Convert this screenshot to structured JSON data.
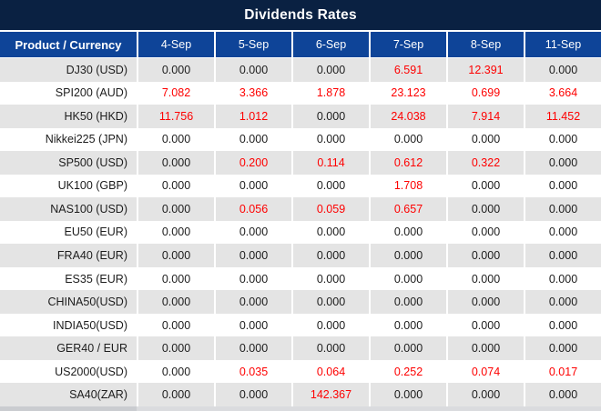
{
  "title": "Dividends Rates",
  "colors": {
    "title-bar-bg": "#0a2142",
    "header-bg": "#0e4498",
    "alt-row-bg": "#e4e4e4",
    "value-red": "#fe0000",
    "value-black": "#1c1c1c",
    "grid-line": "#ffffff"
  },
  "table": {
    "product_header": "Product / Currency",
    "date_headers": [
      "4-Sep",
      "5-Sep",
      "6-Sep",
      "7-Sep",
      "8-Sep",
      "11-Sep"
    ],
    "rows": [
      {
        "product": "DJ30 (USD)",
        "values": [
          "0.000",
          "0.000",
          "0.000",
          "6.591",
          "12.391",
          "0.000"
        ],
        "red": [
          false,
          false,
          false,
          true,
          true,
          false
        ]
      },
      {
        "product": "SPI200 (AUD)",
        "values": [
          "7.082",
          "3.366",
          "1.878",
          "23.123",
          "0.699",
          "3.664"
        ],
        "red": [
          true,
          true,
          true,
          true,
          true,
          true
        ]
      },
      {
        "product": "HK50 (HKD)",
        "values": [
          "11.756",
          "1.012",
          "0.000",
          "24.038",
          "7.914",
          "11.452"
        ],
        "red": [
          true,
          true,
          false,
          true,
          true,
          true
        ]
      },
      {
        "product": "Nikkei225 (JPN)",
        "values": [
          "0.000",
          "0.000",
          "0.000",
          "0.000",
          "0.000",
          "0.000"
        ],
        "red": [
          false,
          false,
          false,
          false,
          false,
          false
        ]
      },
      {
        "product": "SP500 (USD)",
        "values": [
          "0.000",
          "0.200",
          "0.114",
          "0.612",
          "0.322",
          "0.000"
        ],
        "red": [
          false,
          true,
          true,
          true,
          true,
          false
        ]
      },
      {
        "product": "UK100 (GBP)",
        "values": [
          "0.000",
          "0.000",
          "0.000",
          "1.708",
          "0.000",
          "0.000"
        ],
        "red": [
          false,
          false,
          false,
          true,
          false,
          false
        ]
      },
      {
        "product": "NAS100 (USD)",
        "values": [
          "0.000",
          "0.056",
          "0.059",
          "0.657",
          "0.000",
          "0.000"
        ],
        "red": [
          false,
          true,
          true,
          true,
          false,
          false
        ]
      },
      {
        "product": "EU50 (EUR)",
        "values": [
          "0.000",
          "0.000",
          "0.000",
          "0.000",
          "0.000",
          "0.000"
        ],
        "red": [
          false,
          false,
          false,
          false,
          false,
          false
        ]
      },
      {
        "product": "FRA40 (EUR)",
        "values": [
          "0.000",
          "0.000",
          "0.000",
          "0.000",
          "0.000",
          "0.000"
        ],
        "red": [
          false,
          false,
          false,
          false,
          false,
          false
        ]
      },
      {
        "product": "ES35 (EUR)",
        "values": [
          "0.000",
          "0.000",
          "0.000",
          "0.000",
          "0.000",
          "0.000"
        ],
        "red": [
          false,
          false,
          false,
          false,
          false,
          false
        ]
      },
      {
        "product": "CHINA50(USD)",
        "values": [
          "0.000",
          "0.000",
          "0.000",
          "0.000",
          "0.000",
          "0.000"
        ],
        "red": [
          false,
          false,
          false,
          false,
          false,
          false
        ]
      },
      {
        "product": "INDIA50(USD)",
        "values": [
          "0.000",
          "0.000",
          "0.000",
          "0.000",
          "0.000",
          "0.000"
        ],
        "red": [
          false,
          false,
          false,
          false,
          false,
          false
        ]
      },
      {
        "product": "GER40 / EUR",
        "values": [
          "0.000",
          "0.000",
          "0.000",
          "0.000",
          "0.000",
          "0.000"
        ],
        "red": [
          false,
          false,
          false,
          false,
          false,
          false
        ]
      },
      {
        "product": "US2000(USD)",
        "values": [
          "0.000",
          "0.035",
          "0.064",
          "0.252",
          "0.074",
          "0.017"
        ],
        "red": [
          false,
          true,
          true,
          true,
          true,
          true
        ]
      },
      {
        "product": "SA40(ZAR)",
        "values": [
          "0.000",
          "0.000",
          "142.367",
          "0.000",
          "0.000",
          "0.000"
        ],
        "red": [
          false,
          false,
          true,
          false,
          false,
          false
        ]
      }
    ]
  }
}
